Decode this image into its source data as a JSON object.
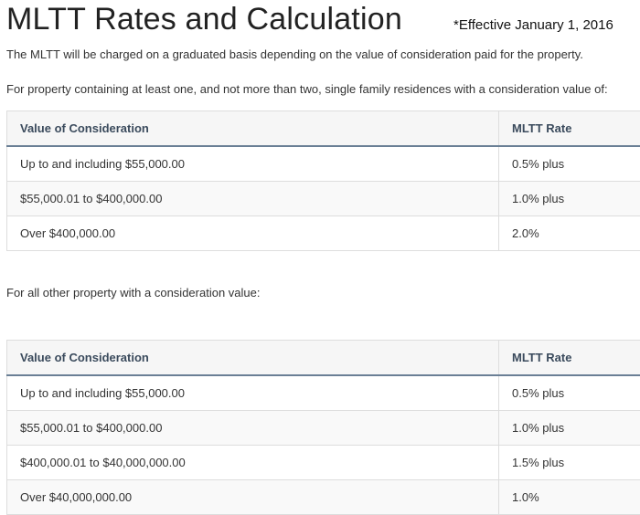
{
  "header": {
    "title": "MLTT Rates and Calculation",
    "effective_note": "*Effective January 1, 2016"
  },
  "intro": "The MLTT will be charged on a graduated basis depending on the value of consideration paid for the property.",
  "residential": {
    "lead": "For property containing at least one, and not more than two, single family residences with a consideration value of:",
    "columns": [
      "Value of Consideration",
      "MLTT Rate"
    ],
    "rows": [
      {
        "value": "Up to and including $55,000.00",
        "rate": "0.5%  plus"
      },
      {
        "value": "$55,000.01 to $400,000.00",
        "rate": "1.0%  plus"
      },
      {
        "value": "Over $400,000.00",
        "rate": "2.0%"
      }
    ]
  },
  "other": {
    "lead": "For all other property with a consideration value:",
    "columns": [
      "Value of Consideration",
      "MLTT Rate"
    ],
    "rows": [
      {
        "value": "Up to and including $55,000.00",
        "rate": "0.5%  plus"
      },
      {
        "value": "$55,000.01 to $400,000.00",
        "rate": "1.0%  plus"
      },
      {
        "value": "$400,000.01 to $40,000,000.00",
        "rate": "1.5%  plus"
      },
      {
        "value": "Over $40,000,000.00",
        "rate": "1.0%"
      }
    ]
  }
}
